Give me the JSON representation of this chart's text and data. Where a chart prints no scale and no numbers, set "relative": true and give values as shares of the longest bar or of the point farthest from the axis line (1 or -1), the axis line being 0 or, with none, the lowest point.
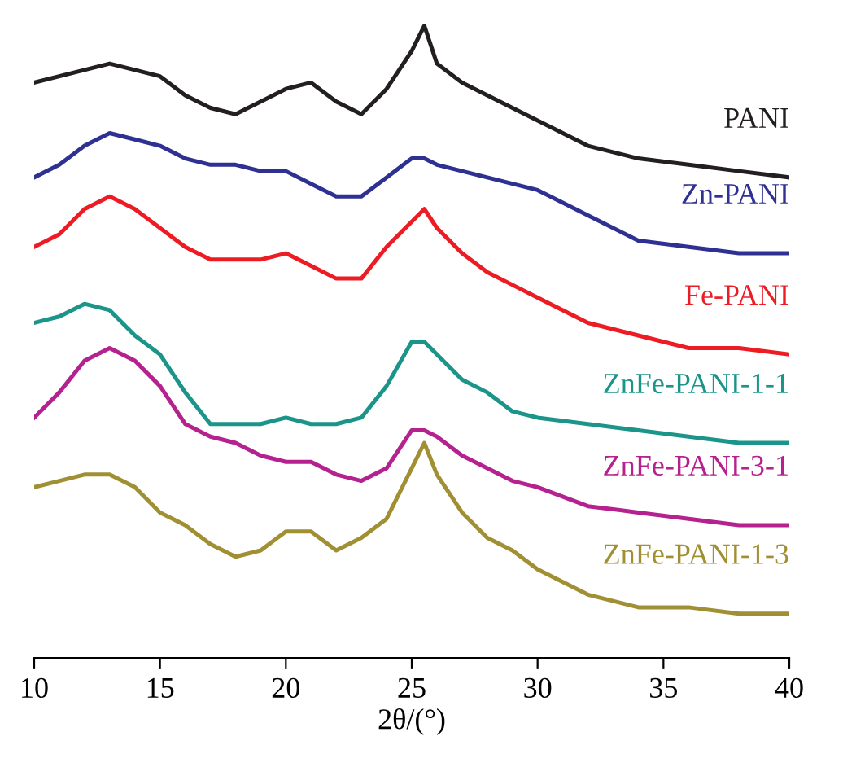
{
  "chart_data": {
    "type": "line",
    "relative": true,
    "xlabel": "2θ/(°)",
    "xlim": [
      10,
      40
    ],
    "xticks": [
      10,
      15,
      20,
      25,
      30,
      35,
      40
    ],
    "grid": false,
    "legend": false,
    "marker": "none",
    "line_style": "solid",
    "tick_labels": "x",
    "x": [
      10,
      11,
      12,
      13,
      14,
      15,
      16,
      17,
      18,
      19,
      20,
      21,
      22,
      23,
      24,
      25,
      25.5,
      26,
      27,
      28,
      29,
      30,
      32,
      34,
      36,
      38,
      40
    ],
    "series": [
      {
        "name": "PANI",
        "color": "#231f20",
        "x": [
          10,
          12,
          13,
          14,
          15,
          16,
          17,
          18,
          19,
          20,
          21,
          22,
          23,
          24,
          25,
          25.5,
          26,
          27,
          28,
          29,
          30,
          32,
          34,
          36,
          38,
          40
        ],
        "values": [
          0.91,
          0.93,
          0.94,
          0.93,
          0.92,
          0.89,
          0.87,
          0.86,
          0.88,
          0.9,
          0.91,
          0.88,
          0.86,
          0.9,
          0.96,
          1.0,
          0.94,
          0.91,
          0.89,
          0.87,
          0.85,
          0.81,
          0.79,
          0.78,
          0.77,
          0.76
        ]
      },
      {
        "name": "Zn-PANI",
        "color": "#2e3192",
        "values": [
          0.76,
          0.78,
          0.81,
          0.83,
          0.82,
          0.81,
          0.79,
          0.78,
          0.78,
          0.77,
          0.77,
          0.75,
          0.73,
          0.73,
          0.76,
          0.79,
          0.79,
          0.78,
          0.77,
          0.76,
          0.75,
          0.74,
          0.7,
          0.66,
          0.65,
          0.64,
          0.64
        ]
      },
      {
        "name": "Fe-PANI",
        "color": "#ed1c24",
        "values": [
          0.65,
          0.67,
          0.71,
          0.73,
          0.71,
          0.68,
          0.65,
          0.63,
          0.63,
          0.63,
          0.64,
          0.62,
          0.6,
          0.6,
          0.65,
          0.69,
          0.71,
          0.68,
          0.64,
          0.61,
          0.59,
          0.57,
          0.53,
          0.51,
          0.49,
          0.49,
          0.48
        ]
      },
      {
        "name": "ZnFe-PANI-1-1",
        "color": "#1b9489",
        "values": [
          0.53,
          0.54,
          0.56,
          0.55,
          0.51,
          0.48,
          0.42,
          0.37,
          0.37,
          0.37,
          0.38,
          0.37,
          0.37,
          0.38,
          0.43,
          0.5,
          0.5,
          0.48,
          0.44,
          0.42,
          0.39,
          0.38,
          0.37,
          0.36,
          0.35,
          0.34,
          0.34
        ]
      },
      {
        "name": "ZnFe-PANI-3-1",
        "color": "#b5218e",
        "values": [
          0.38,
          0.42,
          0.47,
          0.49,
          0.47,
          0.43,
          0.37,
          0.35,
          0.34,
          0.32,
          0.31,
          0.31,
          0.29,
          0.28,
          0.3,
          0.36,
          0.36,
          0.35,
          0.32,
          0.3,
          0.28,
          0.27,
          0.24,
          0.23,
          0.22,
          0.21,
          0.21
        ]
      },
      {
        "name": "ZnFe-PANI-1-3",
        "color": "#a08f33",
        "values": [
          0.27,
          0.28,
          0.29,
          0.29,
          0.27,
          0.23,
          0.21,
          0.18,
          0.16,
          0.17,
          0.2,
          0.2,
          0.17,
          0.19,
          0.22,
          0.3,
          0.34,
          0.29,
          0.23,
          0.19,
          0.17,
          0.14,
          0.1,
          0.08,
          0.08,
          0.07,
          0.07
        ]
      }
    ]
  }
}
